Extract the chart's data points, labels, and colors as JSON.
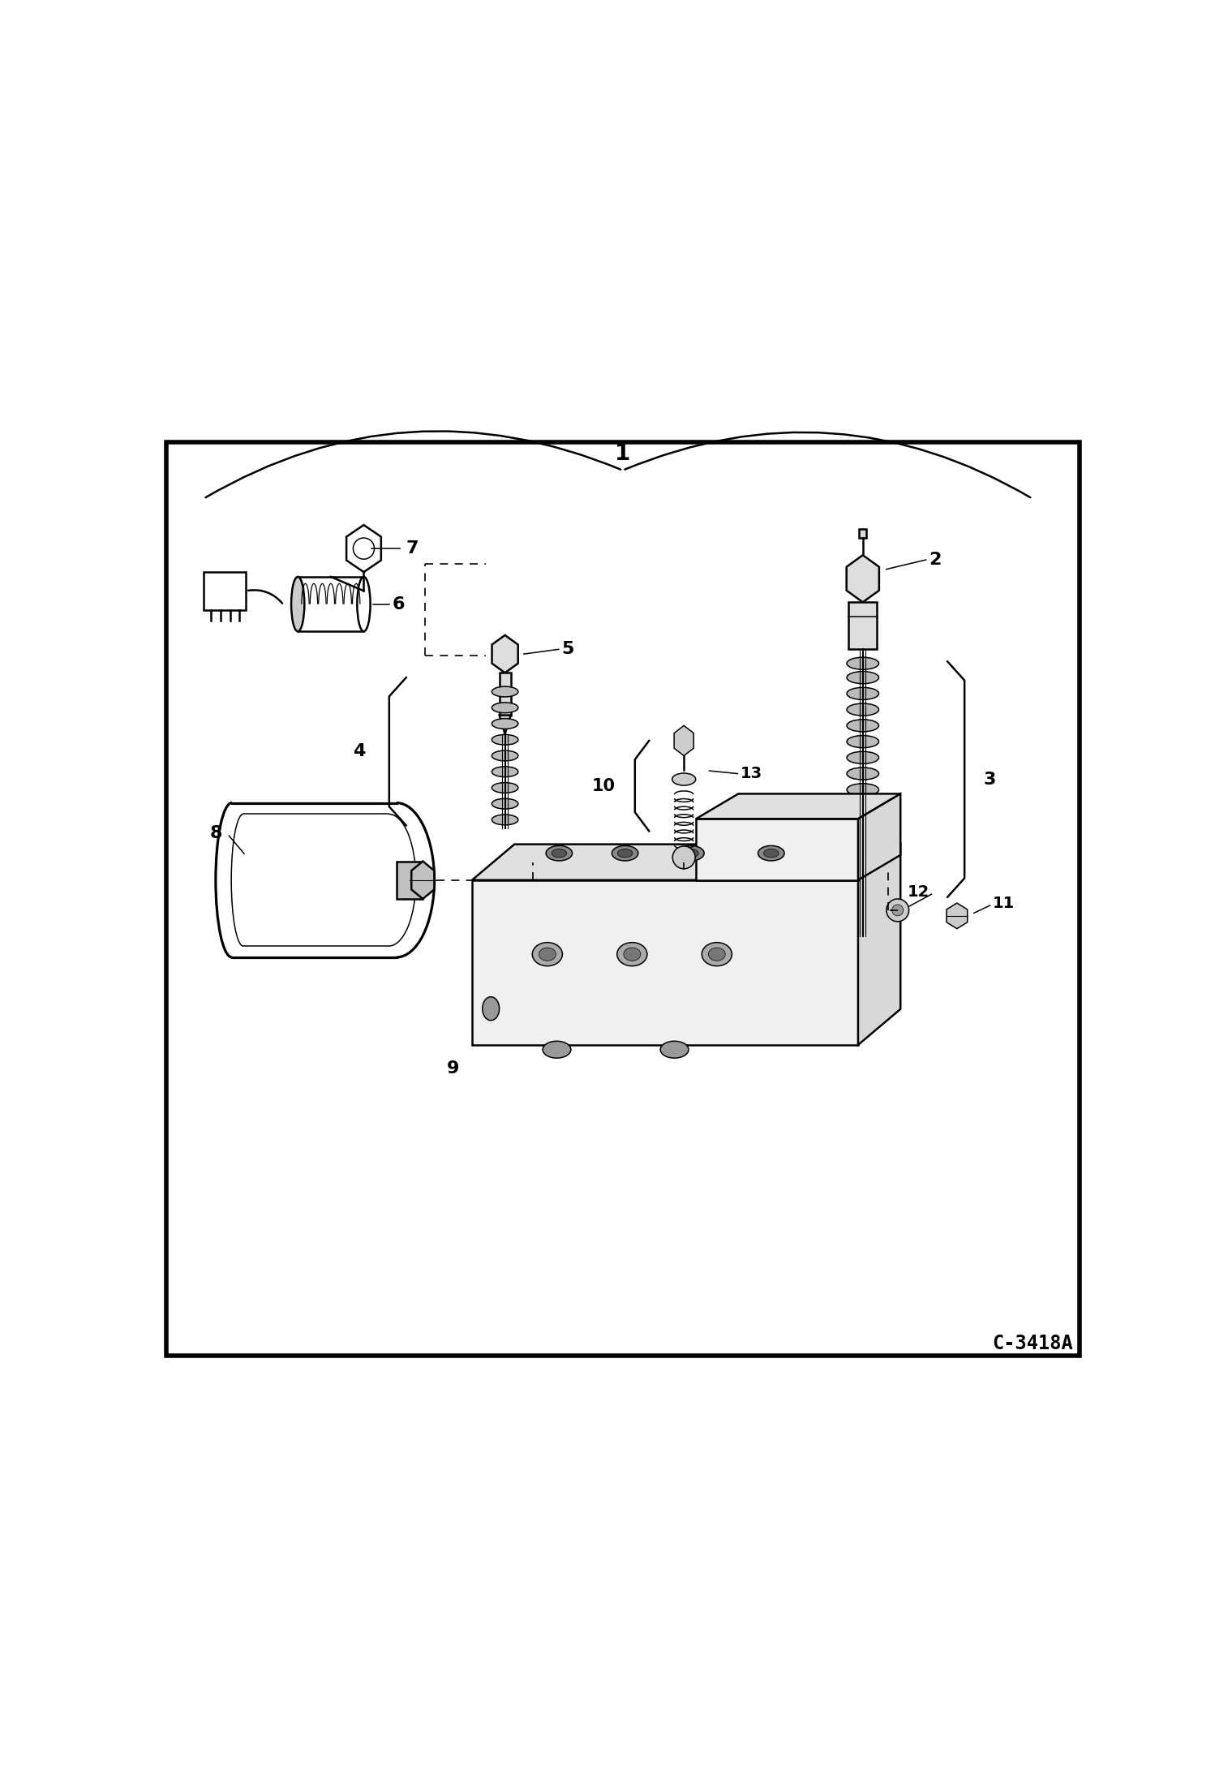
{
  "background_color": "#ffffff",
  "border_color": "#000000",
  "line_color": "#000000",
  "text_color": "#000000",
  "figure_width": 14.98,
  "figure_height": 21.94,
  "dpi": 100,
  "watermark": "C-3418A"
}
